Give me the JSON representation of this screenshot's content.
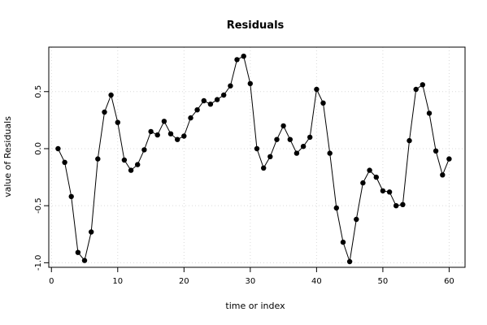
{
  "chart_data": {
    "type": "line",
    "title": "Residuals",
    "xlabel": "time or index",
    "ylabel": "value of Residuals",
    "xlim": [
      -0.4,
      62.4
    ],
    "ylim": [
      -1.04,
      0.89
    ],
    "x_ticks": [
      0,
      10,
      20,
      30,
      40,
      50,
      60
    ],
    "y_ticks": [
      -1.0,
      -0.5,
      0.0,
      0.5
    ],
    "y_tick_labels": [
      "-1.0",
      "-0.5",
      "0.0",
      "0.5"
    ],
    "grid": true,
    "markers": "filled-circle",
    "x": [
      1,
      2,
      3,
      4,
      5,
      6,
      7,
      8,
      9,
      10,
      11,
      12,
      13,
      14,
      15,
      16,
      17,
      18,
      19,
      20,
      21,
      22,
      23,
      24,
      25,
      26,
      27,
      28,
      29,
      30,
      31,
      32,
      33,
      34,
      35,
      36,
      37,
      38,
      39,
      40,
      41,
      42,
      43,
      44,
      45,
      46,
      47,
      48,
      49,
      50,
      51,
      52,
      53,
      54,
      55,
      56,
      57,
      58,
      59,
      60
    ],
    "values": [
      0.0,
      -0.12,
      -0.42,
      -0.91,
      -0.98,
      -0.73,
      -0.09,
      0.32,
      0.47,
      0.23,
      -0.1,
      -0.19,
      -0.14,
      -0.01,
      0.15,
      0.12,
      0.24,
      0.13,
      0.08,
      0.11,
      0.27,
      0.34,
      0.42,
      0.39,
      0.43,
      0.47,
      0.55,
      0.78,
      0.81,
      0.57,
      0.0,
      -0.17,
      -0.07,
      0.08,
      0.2,
      0.08,
      -0.04,
      0.02,
      0.1,
      0.52,
      0.4,
      -0.04,
      -0.52,
      -0.82,
      -0.99,
      -0.62,
      -0.3,
      -0.19,
      -0.25,
      -0.37,
      -0.38,
      -0.5,
      -0.49,
      0.07,
      0.52,
      0.56,
      0.31,
      -0.02,
      -0.23,
      -0.09
    ]
  }
}
